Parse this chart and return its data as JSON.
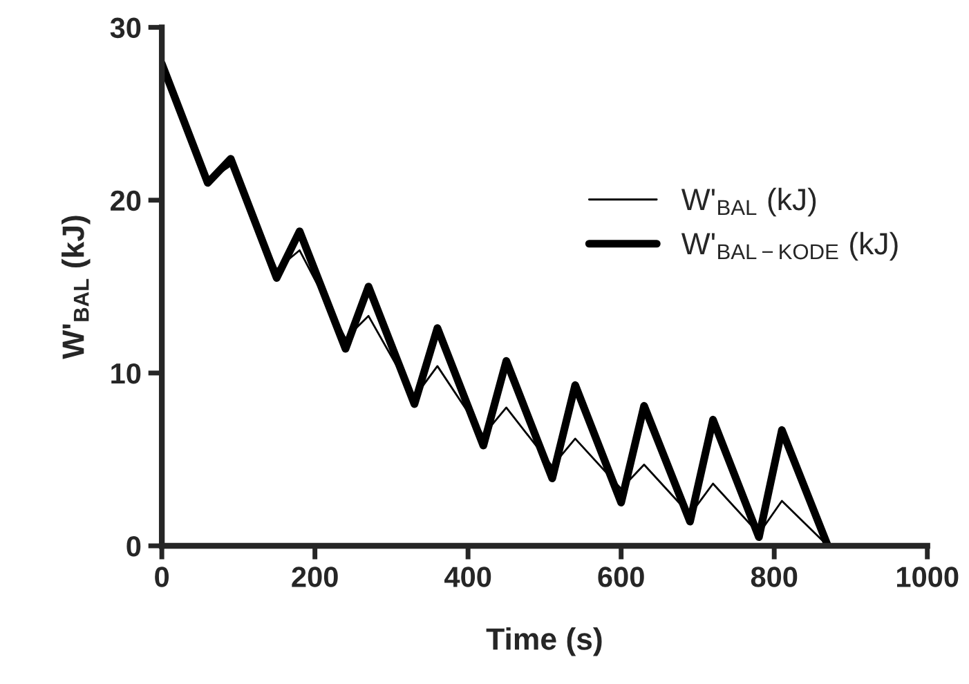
{
  "chart_data": {
    "type": "line",
    "xlabel": "Time (s)",
    "ylabel": "W'$_{BAL}$ (kJ)",
    "x": [
      0,
      60,
      90,
      150,
      180,
      240,
      270,
      330,
      360,
      420,
      450,
      510,
      540,
      600,
      630,
      690,
      720,
      780,
      810,
      870
    ],
    "series": [
      {
        "name": "W'$_{BAL}$ (kJ)",
        "color": "#000000",
        "values": [
          27.9,
          21.1,
          22.0,
          16.0,
          17.1,
          12.0,
          13.3,
          8.6,
          10.4,
          6.4,
          8.0,
          4.6,
          6.2,
          3.3,
          4.7,
          1.8,
          3.6,
          0.7,
          2.6,
          0
        ]
      },
      {
        "name": "W'$_{BAL−KODE}$ (kJ)",
        "color": "#000000",
        "values": [
          27.9,
          21.0,
          22.4,
          15.5,
          18.2,
          11.4,
          15.0,
          8.2,
          12.6,
          5.8,
          10.7,
          3.9,
          9.3,
          2.5,
          8.1,
          1.4,
          7.3,
          0.5,
          6.7,
          0
        ]
      }
    ],
    "xlim": [
      0,
      1000
    ],
    "xticks": [
      0,
      200,
      400,
      600,
      800,
      1000
    ],
    "ylim": [
      0,
      30
    ],
    "yticks": [
      0,
      10,
      20,
      30
    ],
    "grid": false,
    "legend": "right",
    "marker": "none",
    "line_style": "solid"
  }
}
